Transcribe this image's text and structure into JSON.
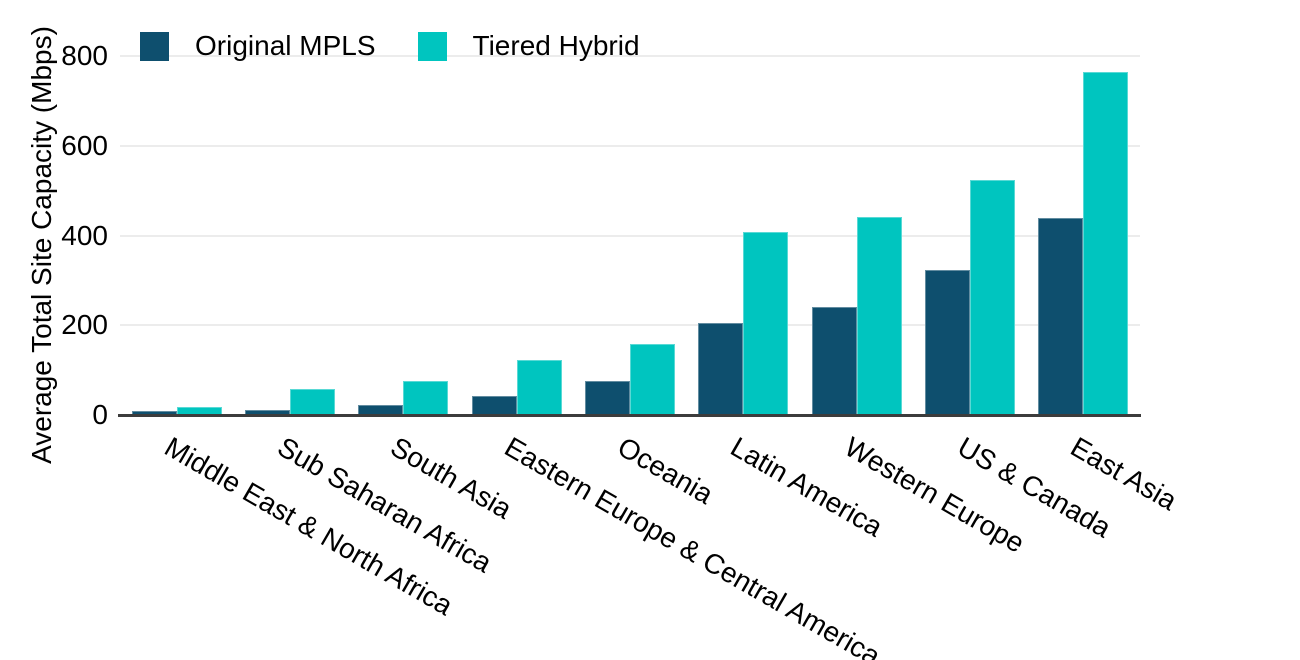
{
  "legend": {
    "items": [
      {
        "label": "Original MPLS",
        "color": "#0E4F6E"
      },
      {
        "label": "Tiered Hybrid",
        "color": "#00C5BF"
      }
    ]
  },
  "axes": {
    "y_title": "Average Total Site Capacity (Mbps)",
    "y_tick_labels": [
      "0",
      "200",
      "400",
      "600",
      "800"
    ]
  },
  "chart_data": {
    "type": "bar",
    "title": "",
    "xlabel": "",
    "ylabel": "Average Total Site Capacity (Mbps)",
    "ylim": [
      0,
      800
    ],
    "yticks": [
      0,
      200,
      400,
      600,
      800
    ],
    "grid": "horizontal",
    "legend_position": "top-left",
    "background": "#FFFFFF",
    "categories": [
      "Middle East & North Africa",
      "Sub Saharan Africa",
      "South Asia",
      "Eastern Europe & Central America",
      "Oceania",
      "Latin America",
      "Western Europe",
      "US & Canada",
      "East Asia"
    ],
    "series": [
      {
        "name": "Original MPLS",
        "color": "#0E4F6E",
        "values": [
          8,
          11,
          22,
          43,
          75,
          206,
          241,
          323,
          438
        ]
      },
      {
        "name": "Tiered Hybrid",
        "color": "#00C5BF",
        "values": [
          18,
          58,
          76,
          123,
          159,
          407,
          442,
          523,
          764
        ]
      }
    ]
  },
  "colors": {
    "grid": "#ECECEC",
    "axis_line": "#3C3C3C",
    "text": "#000000",
    "background": "#FFFFFF"
  }
}
